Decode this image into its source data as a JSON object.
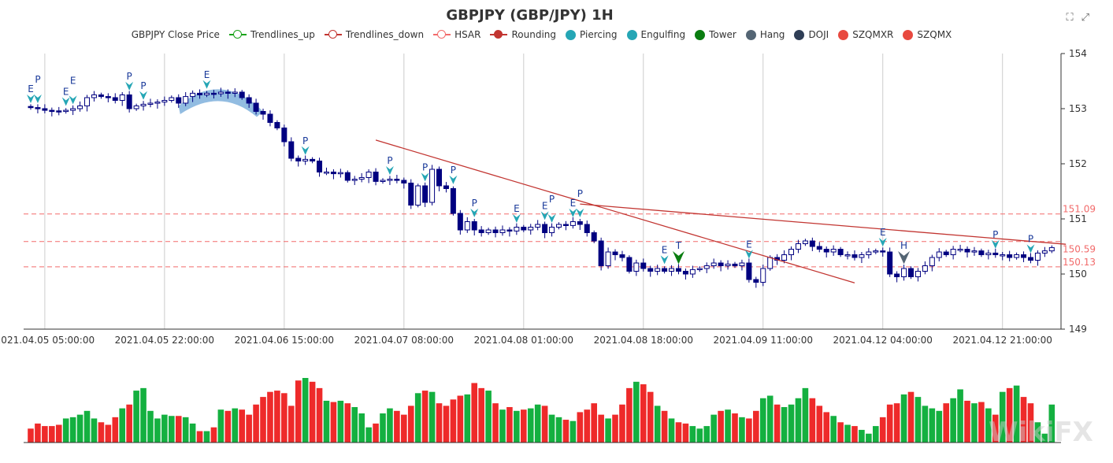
{
  "title": "GBPJPY (GBP/JPY) 1H",
  "legend": [
    {
      "label": "GBPJPY Close Price",
      "style": "none",
      "color": "#333333"
    },
    {
      "label": "Trendlines_up",
      "style": "line-circle",
      "color": "#1aa31a"
    },
    {
      "label": "Trendlines_down",
      "style": "line-circle",
      "color": "#c23531"
    },
    {
      "label": "HSAR",
      "style": "line-circle",
      "color": "#f26b6b"
    },
    {
      "label": "Rounding",
      "style": "line-dot",
      "color": "#c23531"
    },
    {
      "label": "Piercing",
      "style": "dot",
      "color": "#25a6b5"
    },
    {
      "label": "Engulfing",
      "style": "dot",
      "color": "#25a6b5"
    },
    {
      "label": "Tower",
      "style": "dot",
      "color": "#0a7d10"
    },
    {
      "label": "Hang",
      "style": "dot",
      "color": "#546574"
    },
    {
      "label": "DOJI",
      "style": "dot",
      "color": "#2f3e56"
    },
    {
      "label": "SZQMXR",
      "style": "dot",
      "color": "#e8493f"
    },
    {
      "label": "SZQMX",
      "style": "dot",
      "color": "#e8493f"
    }
  ],
  "toolbox": [
    "zoom-icon",
    "restore-icon"
  ],
  "watermark": "WikiFX",
  "chart_data": {
    "type": "candlestick",
    "ylim": [
      149,
      154
    ],
    "yticks": [
      149,
      150,
      151,
      152,
      153,
      154
    ],
    "xticks": [
      {
        "index": 2,
        "label": "2021.04.05 05:00:00"
      },
      {
        "index": 19,
        "label": "2021.04.05 22:00:00"
      },
      {
        "index": 36,
        "label": "2021.04.06 15:00:00"
      },
      {
        "index": 53,
        "label": "2021.04.07 08:00:00"
      },
      {
        "index": 70,
        "label": "2021.04.08 01:00:00"
      },
      {
        "index": 87,
        "label": "2021.04.08 18:00:00"
      },
      {
        "index": 104,
        "label": "2021.04.09 11:00:00"
      },
      {
        "index": 121,
        "label": "2021.04.12 04:00:00"
      },
      {
        "index": 138,
        "label": "2021.04.12 21:00:00"
      }
    ],
    "colors": {
      "up": "#1a1a8c",
      "down": "#000080",
      "vol_up": "#14b040",
      "vol_down": "#ee2a2a",
      "hsar": "#f26b6b",
      "trend": "#c23531",
      "rounding": "#7fb0dc"
    },
    "close": [
      153.02,
      153.0,
      152.97,
      152.96,
      152.95,
      152.97,
      153.0,
      153.05,
      153.2,
      153.25,
      153.22,
      153.2,
      153.15,
      153.25,
      153.0,
      153.05,
      153.08,
      153.1,
      153.12,
      153.15,
      153.2,
      153.1,
      153.22,
      153.28,
      153.25,
      153.28,
      153.27,
      153.3,
      153.28,
      153.3,
      153.2,
      153.1,
      152.95,
      152.9,
      152.75,
      152.65,
      152.4,
      152.1,
      152.05,
      152.08,
      152.05,
      151.85,
      151.85,
      151.82,
      151.84,
      151.7,
      151.72,
      151.75,
      151.85,
      151.68,
      151.7,
      151.72,
      151.7,
      151.65,
      151.25,
      151.6,
      151.3,
      151.9,
      151.6,
      151.55,
      151.1,
      150.8,
      150.95,
      150.8,
      150.75,
      150.8,
      150.75,
      150.8,
      150.78,
      150.85,
      150.8,
      150.85,
      150.9,
      150.75,
      150.85,
      150.9,
      150.88,
      150.95,
      150.9,
      150.75,
      150.6,
      150.15,
      150.4,
      150.35,
      150.3,
      150.05,
      150.2,
      150.1,
      150.05,
      150.1,
      150.05,
      150.1,
      150.05,
      150.0,
      150.08,
      150.1,
      150.15,
      150.2,
      150.15,
      150.18,
      150.15,
      150.2,
      149.9,
      149.85,
      150.1,
      150.3,
      150.25,
      150.35,
      150.45,
      150.55,
      150.6,
      150.5,
      150.45,
      150.4,
      150.45,
      150.35,
      150.35,
      150.3,
      150.35,
      150.4,
      150.42,
      150.4,
      150.0,
      149.95,
      150.1,
      149.95,
      150.05,
      150.15,
      150.3,
      150.4,
      150.35,
      150.45,
      150.45,
      150.4,
      150.42,
      150.35,
      150.38,
      150.35,
      150.35,
      150.3,
      150.35,
      150.3,
      150.25,
      150.38,
      150.42,
      150.48
    ],
    "volume": [
      22,
      30,
      26,
      26,
      28,
      38,
      40,
      44,
      50,
      38,
      32,
      28,
      40,
      54,
      60,
      82,
      86,
      50,
      38,
      44,
      42,
      42,
      40,
      30,
      18,
      18,
      24,
      52,
      50,
      54,
      52,
      44,
      60,
      72,
      80,
      82,
      78,
      58,
      98,
      102,
      96,
      86,
      66,
      64,
      66,
      62,
      56,
      46,
      24,
      30,
      46,
      54,
      50,
      44,
      58,
      78,
      82,
      80,
      62,
      58,
      68,
      74,
      76,
      94,
      86,
      82,
      62,
      52,
      56,
      50,
      52,
      54,
      60,
      58,
      44,
      40,
      36,
      34,
      48,
      52,
      62,
      44,
      38,
      44,
      60,
      86,
      96,
      92,
      80,
      58,
      50,
      38,
      32,
      30,
      26,
      22,
      26,
      44,
      50,
      52,
      46,
      40,
      38,
      50,
      70,
      74,
      60,
      56,
      60,
      70,
      86,
      70,
      58,
      48,
      42,
      32,
      28,
      26,
      20,
      14,
      26,
      40,
      60,
      62,
      76,
      80,
      72,
      58,
      54,
      50,
      62,
      70,
      84,
      66,
      62,
      64,
      54,
      44,
      80,
      86,
      90,
      72,
      62,
      32,
      14,
      60
    ],
    "hsar": [
      151.09,
      150.59,
      150.13
    ],
    "trendlines": [
      {
        "from": {
          "index": 49,
          "price": 152.43
        },
        "to": {
          "index": 117,
          "price": 149.84
        }
      },
      {
        "from": {
          "index": 78,
          "price": 151.27
        },
        "to": {
          "index": 147,
          "price": 150.54
        }
      }
    ],
    "rounding": {
      "from": 21,
      "to": 33
    },
    "markers": [
      {
        "index": 0,
        "label": "E",
        "type": "Engulfing"
      },
      {
        "index": 1,
        "label": "P",
        "type": "Piercing"
      },
      {
        "index": 5,
        "label": "E",
        "type": "Engulfing"
      },
      {
        "index": 6,
        "label": "E",
        "type": "Engulfing"
      },
      {
        "index": 14,
        "label": "P",
        "type": "Piercing"
      },
      {
        "index": 16,
        "label": "P",
        "type": "Piercing"
      },
      {
        "index": 25,
        "label": "E",
        "type": "Engulfing"
      },
      {
        "index": 39,
        "label": "P",
        "type": "Piercing"
      },
      {
        "index": 51,
        "label": "P",
        "type": "Piercing"
      },
      {
        "index": 56,
        "label": "P",
        "type": "Piercing"
      },
      {
        "index": 60,
        "label": "P",
        "type": "Piercing"
      },
      {
        "index": 63,
        "label": "P",
        "type": "Piercing"
      },
      {
        "index": 69,
        "label": "E",
        "type": "Engulfing"
      },
      {
        "index": 73,
        "label": "E",
        "type": "Engulfing"
      },
      {
        "index": 74,
        "label": "P",
        "type": "Piercing"
      },
      {
        "index": 77,
        "label": "E",
        "type": "Engulfing"
      },
      {
        "index": 78,
        "label": "P",
        "type": "Piercing"
      },
      {
        "index": 90,
        "label": "E",
        "type": "Engulfing"
      },
      {
        "index": 92,
        "label": "T",
        "type": "Tower"
      },
      {
        "index": 102,
        "label": "E",
        "type": "Engulfing"
      },
      {
        "index": 121,
        "label": "E",
        "type": "Engulfing"
      },
      {
        "index": 124,
        "label": "H",
        "type": "Hang"
      },
      {
        "index": 137,
        "label": "P",
        "type": "Piercing"
      },
      {
        "index": 142,
        "label": "P",
        "type": "Piercing"
      }
    ]
  }
}
